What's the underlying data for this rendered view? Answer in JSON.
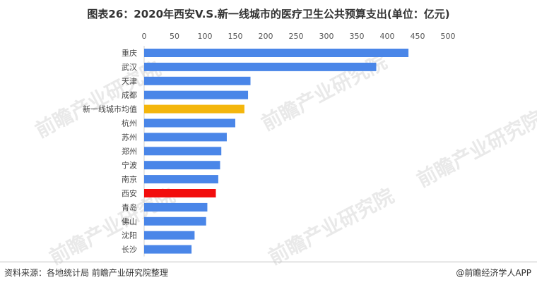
{
  "title": "图表26：2020年西安V.S.新一线城市的医疗卫生公共预算支出(单位：亿元)",
  "footer": {
    "source": "资料来源：各地统计局 前瞻产业研究院整理",
    "brand": "@前瞻经济学人APP"
  },
  "watermark_text": "前瞻产业研究院",
  "chart_data": {
    "type": "bar",
    "orientation": "horizontal",
    "title": "图表26：2020年西安V.S.新一线城市的医疗卫生公共预算支出(单位：亿元)",
    "categories": [
      "重庆",
      "武汉",
      "天津",
      "成都",
      "新一线城市均值",
      "杭州",
      "苏州",
      "郑州",
      "宁波",
      "南京",
      "西安",
      "青岛",
      "佛山",
      "沈阳",
      "长沙"
    ],
    "values": [
      435,
      382,
      175,
      171,
      165,
      150,
      136,
      127,
      125,
      122,
      118,
      104,
      102,
      83,
      78
    ],
    "colors": [
      "#4a86e8",
      "#4a86e8",
      "#4a86e8",
      "#4a86e8",
      "#f4b60c",
      "#4a86e8",
      "#4a86e8",
      "#4a86e8",
      "#4a86e8",
      "#4a86e8",
      "#f20c0c",
      "#4a86e8",
      "#4a86e8",
      "#4a86e8",
      "#4a86e8"
    ],
    "xlim": [
      0,
      500
    ],
    "xticks": [
      0,
      50,
      100,
      150,
      200,
      250,
      300,
      350,
      400,
      450,
      500
    ],
    "axis_position": "top",
    "grid": false
  }
}
